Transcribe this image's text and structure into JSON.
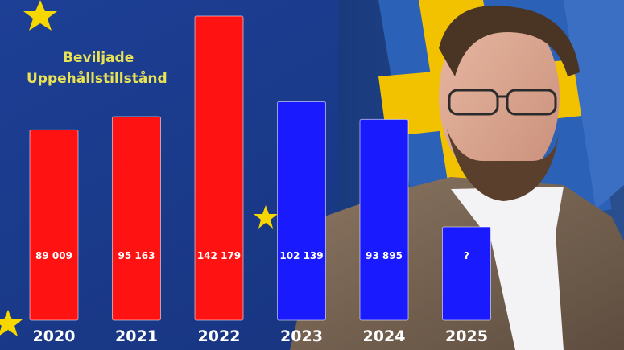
{
  "colors": {
    "red": "#ff1212",
    "blue": "#1a1aff",
    "title": "#e9e255",
    "eu_blue": "#1b3a8c",
    "flag_yellow": "#f2c200"
  },
  "chart_data": {
    "type": "bar",
    "title": "Beviljade Uppehållstillstånd",
    "title_lines": [
      "Beviljade",
      "Uppehållstillstånd"
    ],
    "categories": [
      "2020",
      "2021",
      "2022",
      "2023",
      "2024",
      "2025"
    ],
    "values": [
      89009,
      95163,
      142179,
      102139,
      93895,
      null
    ],
    "value_labels": [
      "89 009",
      "95 163",
      "142 179",
      "102 139",
      "93 895",
      "?"
    ],
    "bar_colors": [
      "red",
      "red",
      "red",
      "blue",
      "blue",
      "blue"
    ],
    "ylim": [
      0,
      150000
    ],
    "grid": false,
    "legend": "none"
  }
}
